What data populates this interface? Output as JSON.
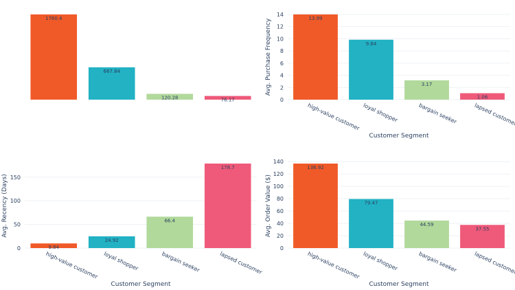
{
  "chart_data": [
    {
      "type": "bar",
      "title": "",
      "xlabel": "",
      "ylabel": "",
      "show_x_ticks": false,
      "show_y_ticks": false,
      "categories": [
        "high-value customer",
        "loyal shopper",
        "bargain seeker",
        "lapsed customer"
      ],
      "values": [
        1760.4,
        667.84,
        120.28,
        76.17
      ],
      "labels": [
        "1760.4",
        "667.84",
        "120.28",
        "76.17"
      ],
      "ylim": [
        0,
        1760.4
      ],
      "yticks": [],
      "colors": [
        "#f05a28",
        "#22b2c4",
        "#b1d99b",
        "#ef5a7a"
      ],
      "grid": false
    },
    {
      "type": "bar",
      "title": "",
      "xlabel": "Customer Segment",
      "ylabel": "Avg. Purchase Frequency",
      "show_x_ticks": true,
      "show_y_ticks": true,
      "categories": [
        "high-value customer",
        "loyal shopper",
        "bargain seeker",
        "lapsed customer"
      ],
      "values": [
        13.99,
        9.84,
        3.17,
        1.06
      ],
      "labels": [
        "13.99",
        "9.84",
        "3.17",
        "1.06"
      ],
      "ylim": [
        0,
        13.99
      ],
      "yticks": [
        0,
        2,
        4,
        6,
        8,
        10,
        12,
        14
      ],
      "colors": [
        "#f05a28",
        "#22b2c4",
        "#b1d99b",
        "#ef5a7a"
      ],
      "grid": true
    },
    {
      "type": "bar",
      "title": "",
      "xlabel": "Customer Segment",
      "ylabel": "Avg. Recency (Days)",
      "show_x_ticks": true,
      "show_y_ticks": true,
      "categories": [
        "high-value customer",
        "loyal shopper",
        "bargain seeker",
        "lapsed customer"
      ],
      "values": [
        9.84,
        24.92,
        66.4,
        178.7
      ],
      "labels": [
        "9.84",
        "24.92",
        "66.4",
        "178.7"
      ],
      "ylim": [
        0,
        178.7
      ],
      "yticks": [
        0,
        50,
        100,
        150
      ],
      "colors": [
        "#f05a28",
        "#22b2c4",
        "#b1d99b",
        "#ef5a7a"
      ],
      "grid": true
    },
    {
      "type": "bar",
      "title": "",
      "xlabel": "Customer Segment",
      "ylabel": "Avg. Order Value ($)",
      "show_x_ticks": true,
      "show_y_ticks": true,
      "categories": [
        "high-value customer",
        "loyal shopper",
        "bargain seeker",
        "lapsed customer"
      ],
      "values": [
        136.92,
        79.47,
        44.59,
        37.55
      ],
      "labels": [
        "136.92",
        "79.47",
        "44.59",
        "37.55"
      ],
      "ylim": [
        0,
        136.92
      ],
      "yticks": [
        0,
        20,
        40,
        60,
        80,
        100,
        120,
        140
      ],
      "colors": [
        "#f05a28",
        "#22b2c4",
        "#b1d99b",
        "#ef5a7a"
      ],
      "grid": true
    }
  ]
}
